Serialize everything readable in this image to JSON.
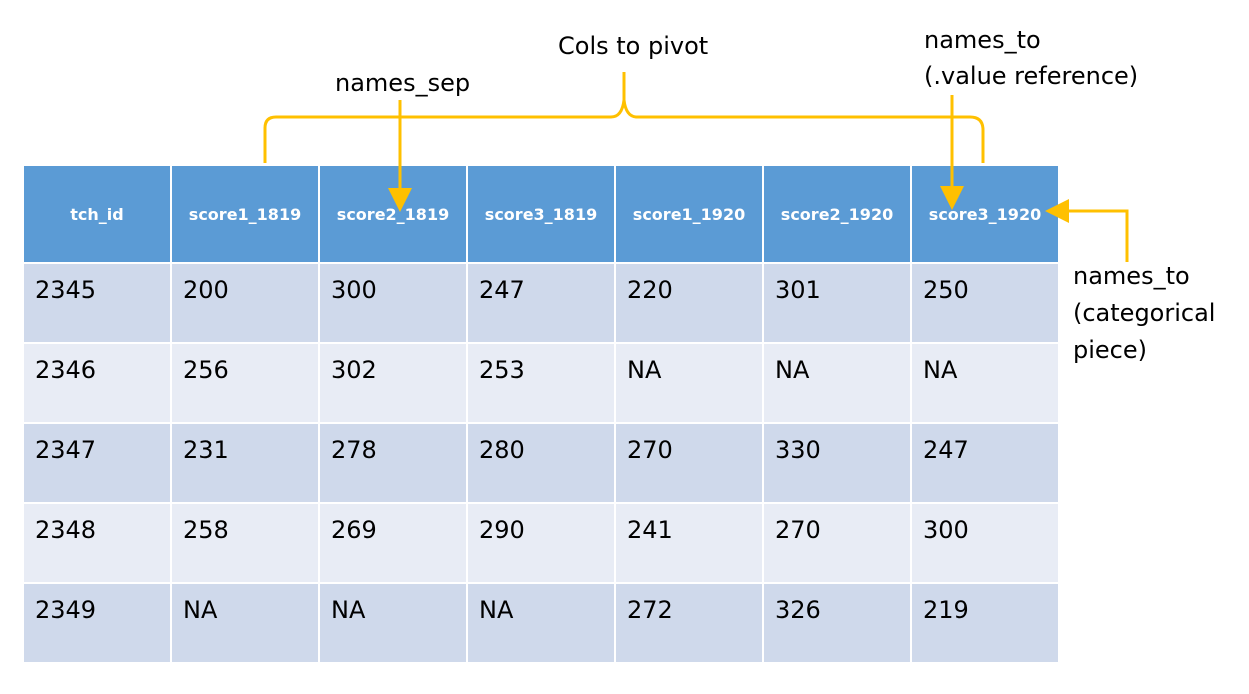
{
  "annotations": {
    "cols_to_pivot": "Cols to pivot",
    "names_sep": "names_sep",
    "names_to_value_line1": "names_to",
    "names_to_value_line2": "(.value reference)",
    "names_to_cat_line1": "names_to",
    "names_to_cat_line2": "(categorical",
    "names_to_cat_line3": "piece)"
  },
  "colors": {
    "header_fill": "#5b9bd5",
    "row_band_dark": "#cfd9eb",
    "row_band_light": "#e8ecf5",
    "annotation": "#ffc000"
  },
  "table": {
    "headers": [
      "tch_id",
      "score1_1819",
      "score2_1819",
      "score3_1819",
      "score1_1920",
      "score2_1920",
      "score3_1920"
    ],
    "rows": [
      [
        "2345",
        "200",
        "300",
        "247",
        "220",
        "301",
        "250"
      ],
      [
        "2346",
        "256",
        "302",
        "253",
        "NA",
        "NA",
        "NA"
      ],
      [
        "2347",
        "231",
        "278",
        "280",
        "270",
        "330",
        "247"
      ],
      [
        "2348",
        "258",
        "269",
        "290",
        "241",
        "270",
        "300"
      ],
      [
        "2349",
        "NA",
        "NA",
        "NA",
        "272",
        "326",
        "219"
      ]
    ]
  }
}
